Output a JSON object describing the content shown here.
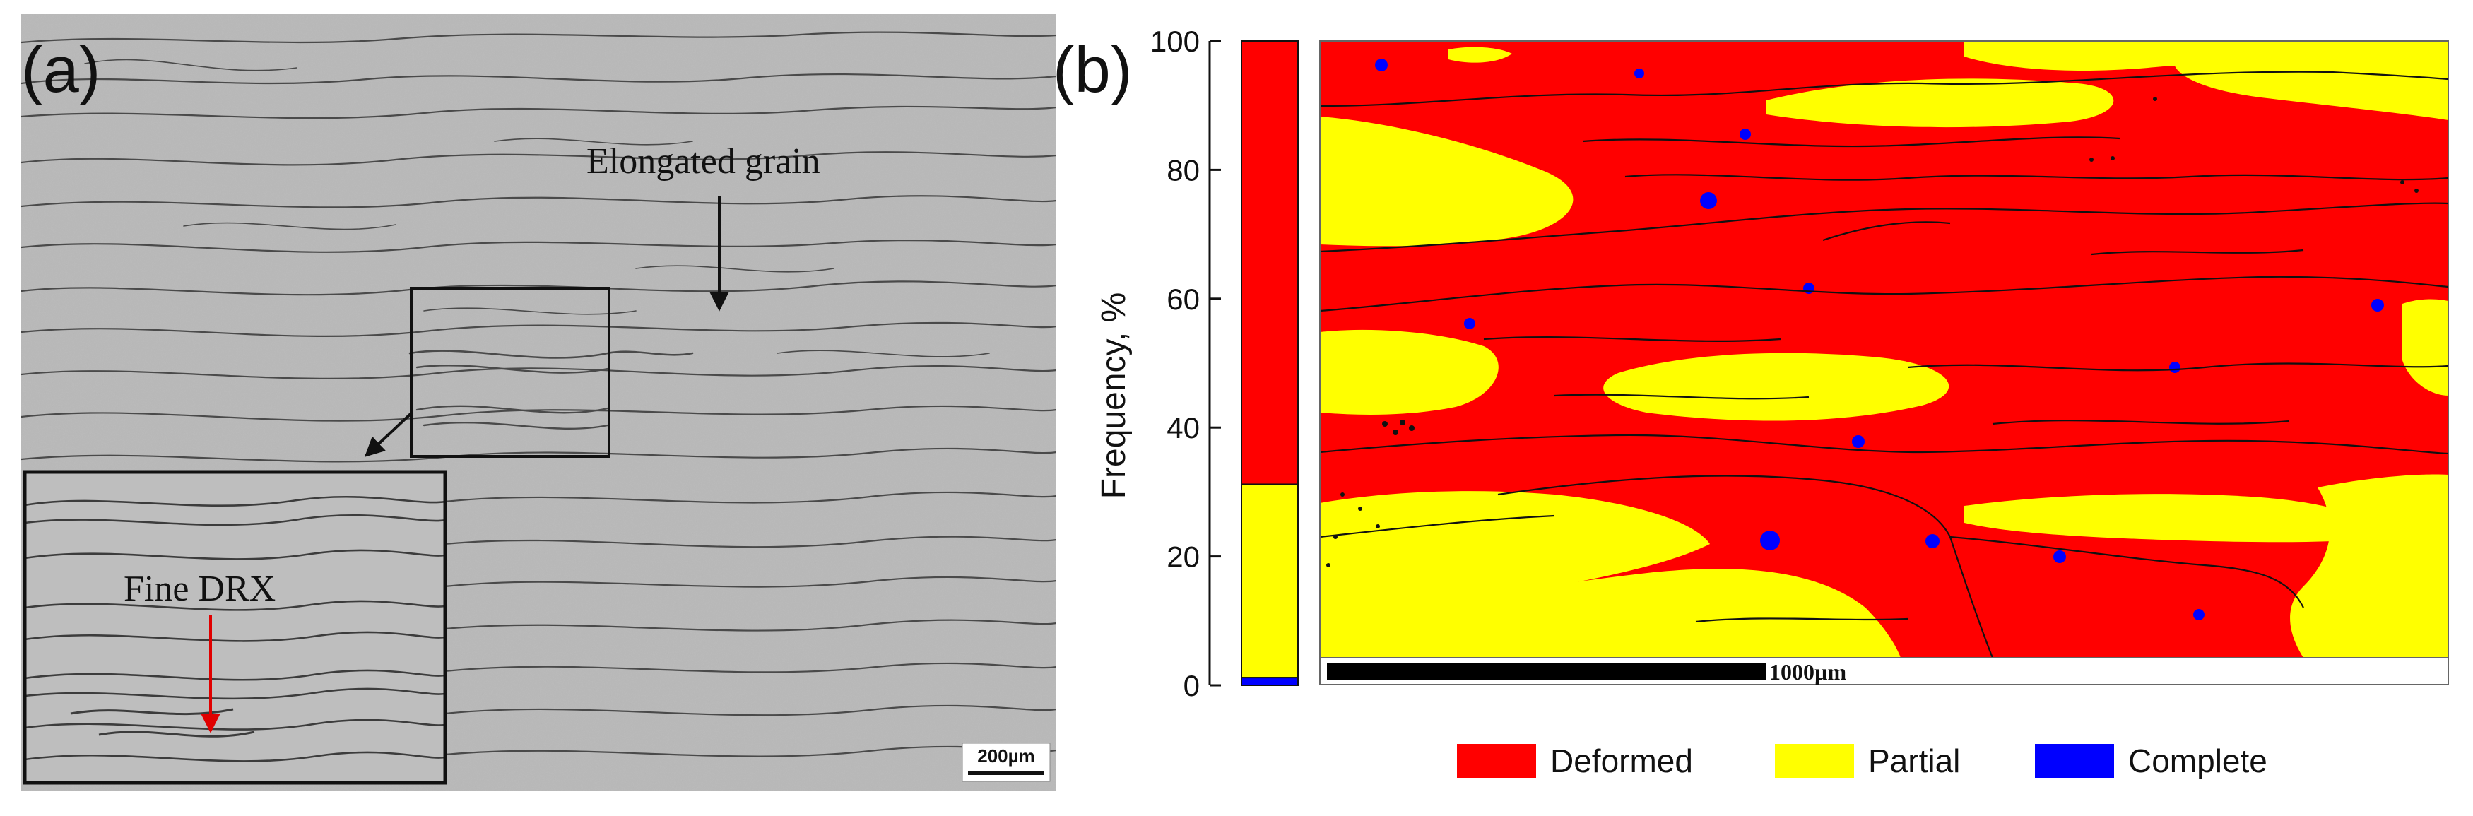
{
  "panel_a": {
    "label": "(a)",
    "annotations": {
      "elongated": "Elongated grain",
      "fine_drx": "Fine DRX"
    },
    "scale_bar": "200µm",
    "colors": {
      "background": "#b5b5b5",
      "boundary": "#444444",
      "arrow_black": "#111111",
      "arrow_red": "#e00000"
    }
  },
  "panel_b": {
    "label": "(b)",
    "scale_bar": "1000µm",
    "colors": {
      "deformed": "#ff0000",
      "partial": "#ffff00",
      "complete": "#0000ff",
      "boundary": "#111111"
    }
  },
  "chart_data": {
    "type": "bar",
    "stacked": true,
    "ylabel": "Frequency, %",
    "ylim": [
      0,
      100
    ],
    "yticks": [
      "0",
      "20",
      "40",
      "60",
      "80",
      "100"
    ],
    "series": [
      {
        "name": "Complete",
        "values": [
          1.2
        ]
      },
      {
        "name": "Partial",
        "values": [
          30
        ]
      },
      {
        "name": "Deformed",
        "values": [
          68.8
        ]
      }
    ],
    "legend": {
      "placement": "bottom",
      "entries": [
        {
          "label": "Deformed",
          "color": "#ff0000"
        },
        {
          "label": "Partial",
          "color": "#ffff00"
        },
        {
          "label": "Complete",
          "color": "#0000ff"
        }
      ]
    }
  }
}
